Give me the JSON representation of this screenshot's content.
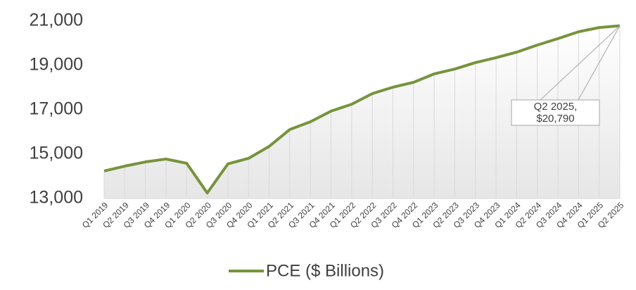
{
  "chart_data": {
    "type": "line",
    "categories": [
      "Q1 2019",
      "Q2 2019",
      "Q3 2019",
      "Q4 2019",
      "Q1 2020",
      "Q2 2020",
      "Q3 2020",
      "Q4 2020",
      "Q1 2021",
      "Q2 2021",
      "Q3 2021",
      "Q4 2021",
      "Q1 2022",
      "Q2 2022",
      "Q3 2022",
      "Q4 2022",
      "Q1 2023",
      "Q2 2023",
      "Q3 2023",
      "Q4 2023",
      "Q1 2024",
      "Q2 2024",
      "Q3 2024",
      "Q4 2024",
      "Q1 2025",
      "Q2 2025"
    ],
    "series": [
      {
        "name": "PCE ($ Billions)",
        "color": "#77933c",
        "values": [
          14240,
          14460,
          14650,
          14780,
          14590,
          13250,
          14560,
          14810,
          15350,
          16110,
          16460,
          16940,
          17250,
          17730,
          18020,
          18240,
          18620,
          18840,
          19130,
          19350,
          19600,
          19920,
          20210,
          20520,
          20710,
          20790
        ]
      }
    ],
    "ylim": [
      13000,
      21000
    ],
    "yticks": [
      {
        "value": 13000,
        "label": "13,000"
      },
      {
        "value": 15000,
        "label": "15,000"
      },
      {
        "value": 17000,
        "label": "17,000"
      },
      {
        "value": 19000,
        "label": "19,000"
      },
      {
        "value": 21000,
        "label": "21,000"
      }
    ],
    "grid": "x",
    "legend": "bottom",
    "annotation": {
      "lines": [
        "Q2 2025,",
        "$20,790"
      ]
    }
  }
}
